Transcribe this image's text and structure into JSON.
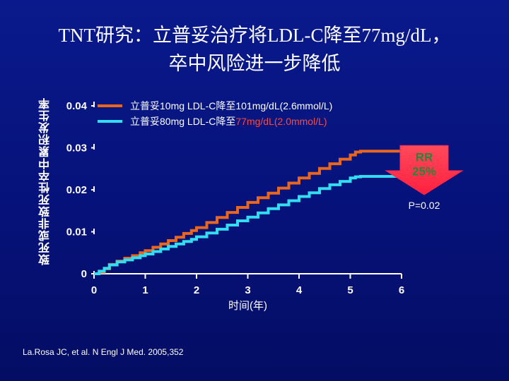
{
  "slide": {
    "title_line1": "TNT研究：立普妥治疗将LDL-C降至77mg/dL，",
    "title_line2": "卒中风险进一步降低",
    "citation": "La.Rosa JC, et al. N Engl J Med. 2005,352"
  },
  "chart_data": {
    "type": "line",
    "title": "",
    "xlabel": "时间(年)",
    "ylabel": "致死或非致死性卒中累积发生率",
    "xlim": [
      0,
      6
    ],
    "ylim": [
      0,
      0.04
    ],
    "x_ticks": [
      "0",
      "1",
      "2",
      "3",
      "4",
      "5",
      "6"
    ],
    "y_ticks": [
      "0",
      "0.01",
      "0.02",
      "0.03",
      "0.04"
    ],
    "y_tick_values": [
      0,
      0.01,
      0.02,
      0.03,
      0.04
    ],
    "grid": false,
    "legend_position": "top",
    "series": [
      {
        "name": "立普妥10mg LDL-C降至101mg/dL(2.6mmol/L)",
        "name_parts": [
          "立普妥10mg LDL-C降至101mg/dL(2.6mmol/L)"
        ],
        "color": "#e8661e",
        "x": [
          0,
          0.1,
          0.2,
          0.3,
          0.45,
          0.6,
          0.75,
          0.9,
          1.0,
          1.15,
          1.3,
          1.45,
          1.6,
          1.75,
          1.9,
          2.0,
          2.2,
          2.4,
          2.6,
          2.8,
          3.0,
          3.2,
          3.4,
          3.6,
          3.8,
          4.0,
          4.2,
          4.4,
          4.6,
          4.8,
          5.0,
          5.1,
          5.2,
          5.4,
          5.6,
          5.8,
          6.0
        ],
        "y": [
          0,
          0.0004,
          0.0012,
          0.0022,
          0.003,
          0.0037,
          0.0043,
          0.005,
          0.0055,
          0.0063,
          0.0071,
          0.0079,
          0.0087,
          0.0096,
          0.0103,
          0.011,
          0.0122,
          0.0134,
          0.0146,
          0.0158,
          0.017,
          0.0181,
          0.0192,
          0.0204,
          0.0216,
          0.0228,
          0.0239,
          0.0251,
          0.0262,
          0.0273,
          0.0283,
          0.029,
          0.0292,
          0.0292,
          0.0292,
          0.0292,
          0.0292
        ]
      },
      {
        "name": "立普妥80mg LDL-C降至77mg/dL(2.0mmol/L)",
        "name_parts": [
          "立普妥80mg LDL-C降至",
          "77mg/dL(2.0mmol/L)"
        ],
        "color": "#33ddf0",
        "x": [
          0,
          0.1,
          0.2,
          0.3,
          0.45,
          0.6,
          0.75,
          0.9,
          1.0,
          1.15,
          1.3,
          1.45,
          1.6,
          1.75,
          1.9,
          2.0,
          2.2,
          2.4,
          2.6,
          2.8,
          3.0,
          3.2,
          3.4,
          3.6,
          3.8,
          4.0,
          4.2,
          4.4,
          4.6,
          4.8,
          5.0,
          5.1,
          5.2,
          5.4,
          5.6,
          5.8,
          6.0
        ],
        "y": [
          0,
          0.0006,
          0.0013,
          0.0021,
          0.0028,
          0.0033,
          0.0038,
          0.0043,
          0.0047,
          0.0053,
          0.0059,
          0.0065,
          0.0071,
          0.0077,
          0.0082,
          0.0088,
          0.0097,
          0.0106,
          0.0116,
          0.0126,
          0.0135,
          0.0145,
          0.0155,
          0.0164,
          0.0174,
          0.0184,
          0.0193,
          0.0203,
          0.0212,
          0.022,
          0.0228,
          0.0231,
          0.0232,
          0.0232,
          0.0232,
          0.0232,
          0.0232
        ]
      }
    ],
    "annotations": {
      "rr_label_line1": "RR",
      "rr_label_line2": "25%",
      "p_value": "P=0.02",
      "arrow_color": "#ff2a4a"
    }
  }
}
